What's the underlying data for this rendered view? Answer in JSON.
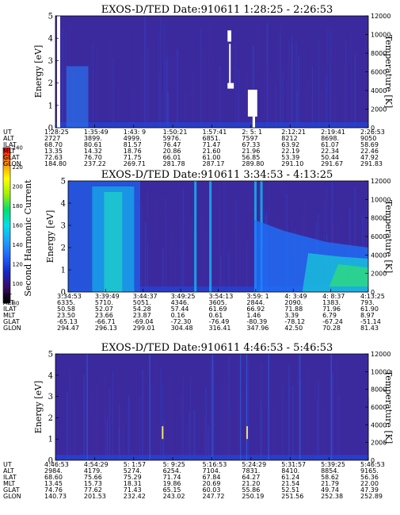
{
  "colorbar": {
    "label": "Second Harmonic Current",
    "ticks": [
      "80",
      "100",
      "120",
      "140",
      "160",
      "180",
      "200",
      "220",
      "240"
    ],
    "stops": [
      "#000000",
      "#3a0a66",
      "#1428c8",
      "#1e64ff",
      "#1ea0ff",
      "#00e0e8",
      "#00e070",
      "#a0f000",
      "#ffff00",
      "#ff9000",
      "#ff0000"
    ]
  },
  "chart_data": [
    {
      "type": "heatmap",
      "title": "EXOS-D/TED   Date:910611   1:28:25 - 2:26:53",
      "ylabel": "Energy [eV]",
      "y2label": "Temperature [K]",
      "ylim": [
        0,
        5
      ],
      "y2lim": [
        0,
        12000
      ],
      "yticks": [
        "0",
        "1",
        "2",
        "3",
        "4",
        "5"
      ],
      "y2ticks": [
        "0",
        "2000",
        "4000",
        "6000",
        "8000",
        "10000",
        "12000"
      ],
      "rows": [
        {
          "label": "UT",
          "values": [
            "1:28:25",
            "1:35:49",
            "1:43: 9",
            "1:50:21",
            "1:57:41",
            "2: 5: 1",
            "2:12:21",
            "2:19:41",
            "2:26:53"
          ]
        },
        {
          "label": "ALT",
          "values": [
            "2727",
            "3899.",
            "4999.",
            "5976.",
            "6851.",
            "7597",
            "8212",
            "8698.",
            "9050"
          ]
        },
        {
          "label": "ILAT",
          "values": [
            "68.70",
            "80.61",
            "81.57",
            "76.47",
            "71.47",
            "67.33",
            "63.92",
            "61.07",
            "58.69"
          ]
        },
        {
          "label": "MLT",
          "values": [
            "13.35",
            "14.32",
            "18.76",
            "20.86",
            "21.60",
            "21.96",
            "22.19",
            "22.34",
            "22.46"
          ]
        },
        {
          "label": "GLAT",
          "values": [
            "72.63",
            "76.70",
            "71.75",
            "66.01",
            "61.00",
            "56.85",
            "53.39",
            "50.44",
            "47.92"
          ]
        },
        {
          "label": "GLON",
          "values": [
            "184.80",
            "237.22",
            "269.71",
            "281.78",
            "287.17",
            "289.80",
            "291.10",
            "291.67",
            "291.83"
          ]
        }
      ]
    },
    {
      "type": "heatmap",
      "title": "EXOS-D/TED   Date:910611   3:34:53 - 4:13:25",
      "ylabel": "Energy [eV]",
      "y2label": "Temperature [K]",
      "ylim": [
        0,
        5
      ],
      "y2lim": [
        0,
        12000
      ],
      "yticks": [
        "0",
        "1",
        "2",
        "3",
        "4",
        "5"
      ],
      "y2ticks": [
        "0",
        "2000",
        "4000",
        "6000",
        "8000",
        "10000",
        "12000"
      ],
      "rows": [
        {
          "label": "UT",
          "values": [
            "3:34:53",
            "3:39:49",
            "3:44:37",
            "3:49:25",
            "3:54:13",
            "3:59: 1",
            "4: 3:49",
            "4: 8:37",
            "4:13:25"
          ]
        },
        {
          "label": "ALT",
          "values": [
            "6335.",
            "5710.",
            "5051.",
            "4346.",
            "3605.",
            "2844.",
            "2090.",
            "1383.",
            "793."
          ]
        },
        {
          "label": "ILAT",
          "values": [
            "50.58",
            "52.07",
            "54.28",
            "57.44",
            "61.69",
            "66.92",
            "71.88",
            "71.96",
            "61.90"
          ]
        },
        {
          "label": "MLT",
          "values": [
            "23.50",
            "23.66",
            "23.87",
            "0.16",
            "0.61",
            "1.46",
            "3.39",
            "6.79",
            "8.97"
          ]
        },
        {
          "label": "GLAT",
          "values": [
            "-65.13",
            "-66.71",
            "-69.04",
            "-72.30",
            "-76.49",
            "-80.39",
            "-78.12",
            "-67.24",
            "-51.14"
          ]
        },
        {
          "label": "GLON",
          "values": [
            "294.47",
            "296.13",
            "299.01",
            "304.48",
            "316.41",
            "347.96",
            "42.50",
            "70.28",
            "81.43"
          ]
        }
      ]
    },
    {
      "type": "heatmap",
      "title": "EXOS-D/TED   Date:910611   4:46:53 - 5:46:53",
      "ylabel": "Energy [eV]",
      "y2label": "Temperature [K]",
      "ylim": [
        0,
        5
      ],
      "y2lim": [
        0,
        12000
      ],
      "yticks": [
        "0",
        "1",
        "2",
        "3",
        "4",
        "5"
      ],
      "y2ticks": [
        "0",
        "2000",
        "4000",
        "6000",
        "8000",
        "10000",
        "12000"
      ],
      "rows": [
        {
          "label": "UT",
          "values": [
            "4:46:53",
            "4:54:29",
            "5: 1:57",
            "5: 9:25",
            "5:16:53",
            "5:24:29",
            "5:31:57",
            "5:39:25",
            "5:46:53"
          ]
        },
        {
          "label": "ALT",
          "values": [
            "2984.",
            "4179.",
            "5274.",
            "6254.",
            "7104.",
            "7831.",
            "8410.",
            "8854.",
            "9165."
          ]
        },
        {
          "label": "ILAT",
          "values": [
            "68.60",
            "75.66",
            "75.29",
            "71.74",
            "67.84",
            "64.27",
            "61.24",
            "58.62",
            "56.36"
          ]
        },
        {
          "label": "MLT",
          "values": [
            "13.45",
            "15.73",
            "18.31",
            "19.86",
            "20.69",
            "21.20",
            "21.54",
            "21.79",
            "22.00"
          ]
        },
        {
          "label": "GLAT",
          "values": [
            "74.76",
            "77.62",
            "71.43",
            "65.15",
            "60.03",
            "55.86",
            "52.51",
            "49.74",
            "47.39"
          ]
        },
        {
          "label": "GLON",
          "values": [
            "140.73",
            "201.53",
            "232.42",
            "243.02",
            "247.72",
            "250.19",
            "251.56",
            "252.38",
            "252.89"
          ]
        }
      ]
    }
  ]
}
